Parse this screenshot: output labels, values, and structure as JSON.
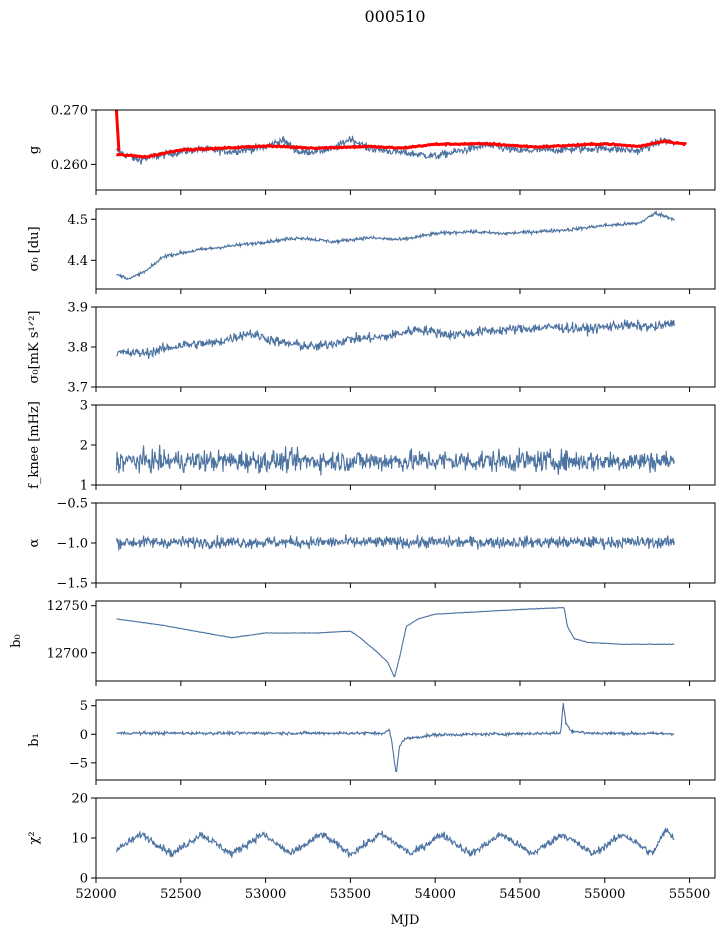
{
  "figure": {
    "title": "000510",
    "xlabel": "MJD"
  },
  "colors": {
    "series": "#4c72a0",
    "fit": "#ff0000",
    "axes": "#000000"
  },
  "chart_data": {
    "type": "line",
    "x_range": [
      52000,
      55650
    ],
    "x_ticks": [
      52000,
      52500,
      53000,
      53500,
      54000,
      54500,
      55000,
      55500
    ],
    "x_tick_labels": [
      "52000",
      "52500",
      "53000",
      "53500",
      "54000",
      "54500",
      "55000",
      "55500"
    ],
    "data_start": 52120,
    "data_end": 55410,
    "panels": [
      {
        "id": "g",
        "ylabel": "g",
        "ylim": [
          0.2553,
          0.27
        ],
        "yticks": [
          0.26,
          0.27
        ],
        "ytick_labels": [
          "0.260",
          "0.270"
        ],
        "series_knots": [
          [
            52120,
            0.2625
          ],
          [
            52250,
            0.2608
          ],
          [
            52400,
            0.2618
          ],
          [
            52600,
            0.2628
          ],
          [
            52800,
            0.2624
          ],
          [
            53000,
            0.2632
          ],
          [
            53100,
            0.2645
          ],
          [
            53200,
            0.2622
          ],
          [
            53400,
            0.2628
          ],
          [
            53500,
            0.2648
          ],
          [
            53600,
            0.263
          ],
          [
            53800,
            0.2622
          ],
          [
            54000,
            0.2615
          ],
          [
            54300,
            0.2635
          ],
          [
            54500,
            0.2625
          ],
          [
            54800,
            0.2628
          ],
          [
            55000,
            0.263
          ],
          [
            55200,
            0.2625
          ],
          [
            55350,
            0.2645
          ],
          [
            55410,
            0.2638
          ]
        ],
        "noise": 0.0007,
        "fit_knots": [
          [
            52120,
            0.2618
          ],
          [
            52300,
            0.2614
          ],
          [
            52500,
            0.2627
          ],
          [
            52700,
            0.2629
          ],
          [
            53000,
            0.2634
          ],
          [
            53300,
            0.263
          ],
          [
            53600,
            0.2633
          ],
          [
            53800,
            0.263
          ],
          [
            54000,
            0.2637
          ],
          [
            54300,
            0.2638
          ],
          [
            54600,
            0.2632
          ],
          [
            55000,
            0.2638
          ],
          [
            55200,
            0.2633
          ],
          [
            55350,
            0.2643
          ],
          [
            55480,
            0.2637
          ]
        ],
        "fit_spike": [
          [
            52120,
            0.27
          ],
          [
            52135,
            0.2625
          ]
        ]
      },
      {
        "id": "sigma0-du",
        "ylabel": "σ₀ [du]",
        "ylim": [
          4.33,
          4.525
        ],
        "yticks": [
          4.4,
          4.5
        ],
        "ytick_labels": [
          "4.4",
          "4.5"
        ],
        "series_knots": [
          [
            52120,
            4.365
          ],
          [
            52200,
            4.355
          ],
          [
            52300,
            4.375
          ],
          [
            52400,
            4.41
          ],
          [
            52600,
            4.425
          ],
          [
            52800,
            4.435
          ],
          [
            53000,
            4.445
          ],
          [
            53200,
            4.455
          ],
          [
            53400,
            4.445
          ],
          [
            53600,
            4.455
          ],
          [
            53800,
            4.45
          ],
          [
            54000,
            4.465
          ],
          [
            54200,
            4.47
          ],
          [
            54400,
            4.465
          ],
          [
            54600,
            4.47
          ],
          [
            54800,
            4.475
          ],
          [
            55000,
            4.485
          ],
          [
            55200,
            4.49
          ],
          [
            55300,
            4.515
          ],
          [
            55410,
            4.5
          ]
        ],
        "noise": 0.004
      },
      {
        "id": "sigma0-mk",
        "ylabel": "σ₀[mK s¹ᐟ²]",
        "ylim": [
          3.7,
          3.9
        ],
        "yticks": [
          3.7,
          3.8,
          3.9
        ],
        "ytick_labels": [
          "3.7",
          "3.8",
          "3.9"
        ],
        "series_knots": [
          [
            52120,
            3.785
          ],
          [
            52300,
            3.785
          ],
          [
            52500,
            3.805
          ],
          [
            52700,
            3.81
          ],
          [
            52900,
            3.835
          ],
          [
            53100,
            3.81
          ],
          [
            53300,
            3.8
          ],
          [
            53500,
            3.82
          ],
          [
            53700,
            3.825
          ],
          [
            53900,
            3.845
          ],
          [
            54100,
            3.83
          ],
          [
            54300,
            3.84
          ],
          [
            54500,
            3.845
          ],
          [
            54700,
            3.85
          ],
          [
            54900,
            3.845
          ],
          [
            55100,
            3.855
          ],
          [
            55300,
            3.85
          ],
          [
            55410,
            3.86
          ]
        ],
        "noise": 0.012
      },
      {
        "id": "fknee",
        "ylabel": "f_knee [mHz]",
        "ylim": [
          1,
          3
        ],
        "yticks": [
          1,
          2,
          3
        ],
        "ytick_labels": [
          "1",
          "2",
          "3"
        ],
        "series_knots": [
          [
            52120,
            1.6
          ],
          [
            55410,
            1.6
          ]
        ],
        "noise": 0.26
      },
      {
        "id": "alpha",
        "ylabel": "α",
        "ylim": [
          -1.5,
          -0.5
        ],
        "yticks": [
          -1.5,
          -1.0,
          -0.5
        ],
        "ytick_labels": [
          "−1.5",
          "−1.0",
          "−0.5"
        ],
        "series_knots": [
          [
            52120,
            -0.99
          ],
          [
            55410,
            -0.99
          ]
        ],
        "noise": 0.07
      },
      {
        "id": "b0",
        "ylabel": "b₀",
        "ylim": [
          12670,
          12755
        ],
        "yticks": [
          12700,
          12750
        ],
        "ytick_labels": [
          "12700",
          "12750"
        ],
        "series_knots": [
          [
            52120,
            12736
          ],
          [
            52400,
            12729
          ],
          [
            52800,
            12716
          ],
          [
            53000,
            12721
          ],
          [
            53300,
            12721
          ],
          [
            53500,
            12723
          ],
          [
            53550,
            12717
          ],
          [
            53650,
            12702
          ],
          [
            53720,
            12690
          ],
          [
            53760,
            12674
          ],
          [
            53790,
            12695
          ],
          [
            53830,
            12728
          ],
          [
            53900,
            12736
          ],
          [
            54000,
            12741
          ],
          [
            54200,
            12743
          ],
          [
            54500,
            12746
          ],
          [
            54760,
            12748
          ],
          [
            54780,
            12728
          ],
          [
            54820,
            12715
          ],
          [
            54900,
            12711
          ],
          [
            55100,
            12709
          ],
          [
            55410,
            12709
          ]
        ],
        "noise": 0.3
      },
      {
        "id": "b1",
        "ylabel": "b₁",
        "ylim": [
          -8,
          6
        ],
        "yticks": [
          -5,
          0,
          5
        ],
        "ytick_labels": [
          "−5",
          "0",
          "5"
        ],
        "series_knots": [
          [
            52120,
            0.2
          ],
          [
            53700,
            0.2
          ],
          [
            53730,
            0.8
          ],
          [
            53745,
            -1.5
          ],
          [
            53770,
            -7
          ],
          [
            53790,
            -2
          ],
          [
            53820,
            -0.8
          ],
          [
            54000,
            -0.1
          ],
          [
            54740,
            0.2
          ],
          [
            54755,
            5.5
          ],
          [
            54770,
            2.2
          ],
          [
            54800,
            0.6
          ],
          [
            54900,
            0.2
          ],
          [
            55410,
            0.1
          ]
        ],
        "noise": 0.25
      },
      {
        "id": "chi2",
        "ylabel": "χ²",
        "ylim": [
          0,
          20
        ],
        "yticks": [
          0,
          10,
          20
        ],
        "ytick_labels": [
          "0",
          "10",
          "20"
        ],
        "series_knots": [
          [
            52120,
            7
          ],
          [
            52270,
            11
          ],
          [
            52450,
            6
          ],
          [
            52620,
            11
          ],
          [
            52800,
            6
          ],
          [
            52980,
            11
          ],
          [
            53150,
            6
          ],
          [
            53330,
            11
          ],
          [
            53500,
            6
          ],
          [
            53680,
            11
          ],
          [
            53860,
            6
          ],
          [
            54040,
            11
          ],
          [
            54210,
            6
          ],
          [
            54390,
            11
          ],
          [
            54570,
            6
          ],
          [
            54750,
            11
          ],
          [
            54930,
            6
          ],
          [
            55110,
            11
          ],
          [
            55280,
            6
          ],
          [
            55360,
            12
          ],
          [
            55410,
            10
          ]
        ],
        "noise": 0.9
      }
    ]
  }
}
